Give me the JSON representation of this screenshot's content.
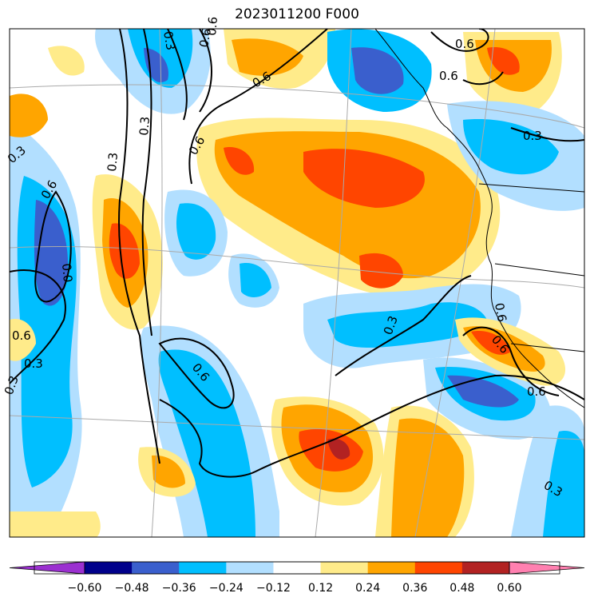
{
  "title": "2023011200 F000",
  "colorbar": {
    "ticks": [
      "−0.60",
      "−0.48",
      "−0.36",
      "−0.24",
      "−0.12",
      "0.12",
      "0.24",
      "0.36",
      "0.48",
      "0.60"
    ],
    "levels": [
      -0.6,
      -0.48,
      -0.36,
      -0.24,
      -0.12,
      0.12,
      0.24,
      0.36,
      0.48,
      0.6
    ],
    "colors": [
      "#9b30d0",
      "#00008b",
      "#3a5fcd",
      "#00bfff",
      "#b2dfff",
      "#ffffff",
      "#ffeb8a",
      "#ffa500",
      "#ff4500",
      "#b22222",
      "#ff80b0"
    ],
    "extend": "both"
  },
  "contour_labels": [
    "0.6",
    "0.6",
    "0.6",
    "0.3",
    "0.3",
    "0.3",
    "0.6",
    "0.6",
    "0.6",
    "0.0",
    "0.6",
    "0.3",
    "0.6",
    "0.3",
    "0.6",
    "0.6",
    "0.3",
    "0.6",
    "0.3",
    "0.6",
    "0.3",
    "0.3"
  ]
}
